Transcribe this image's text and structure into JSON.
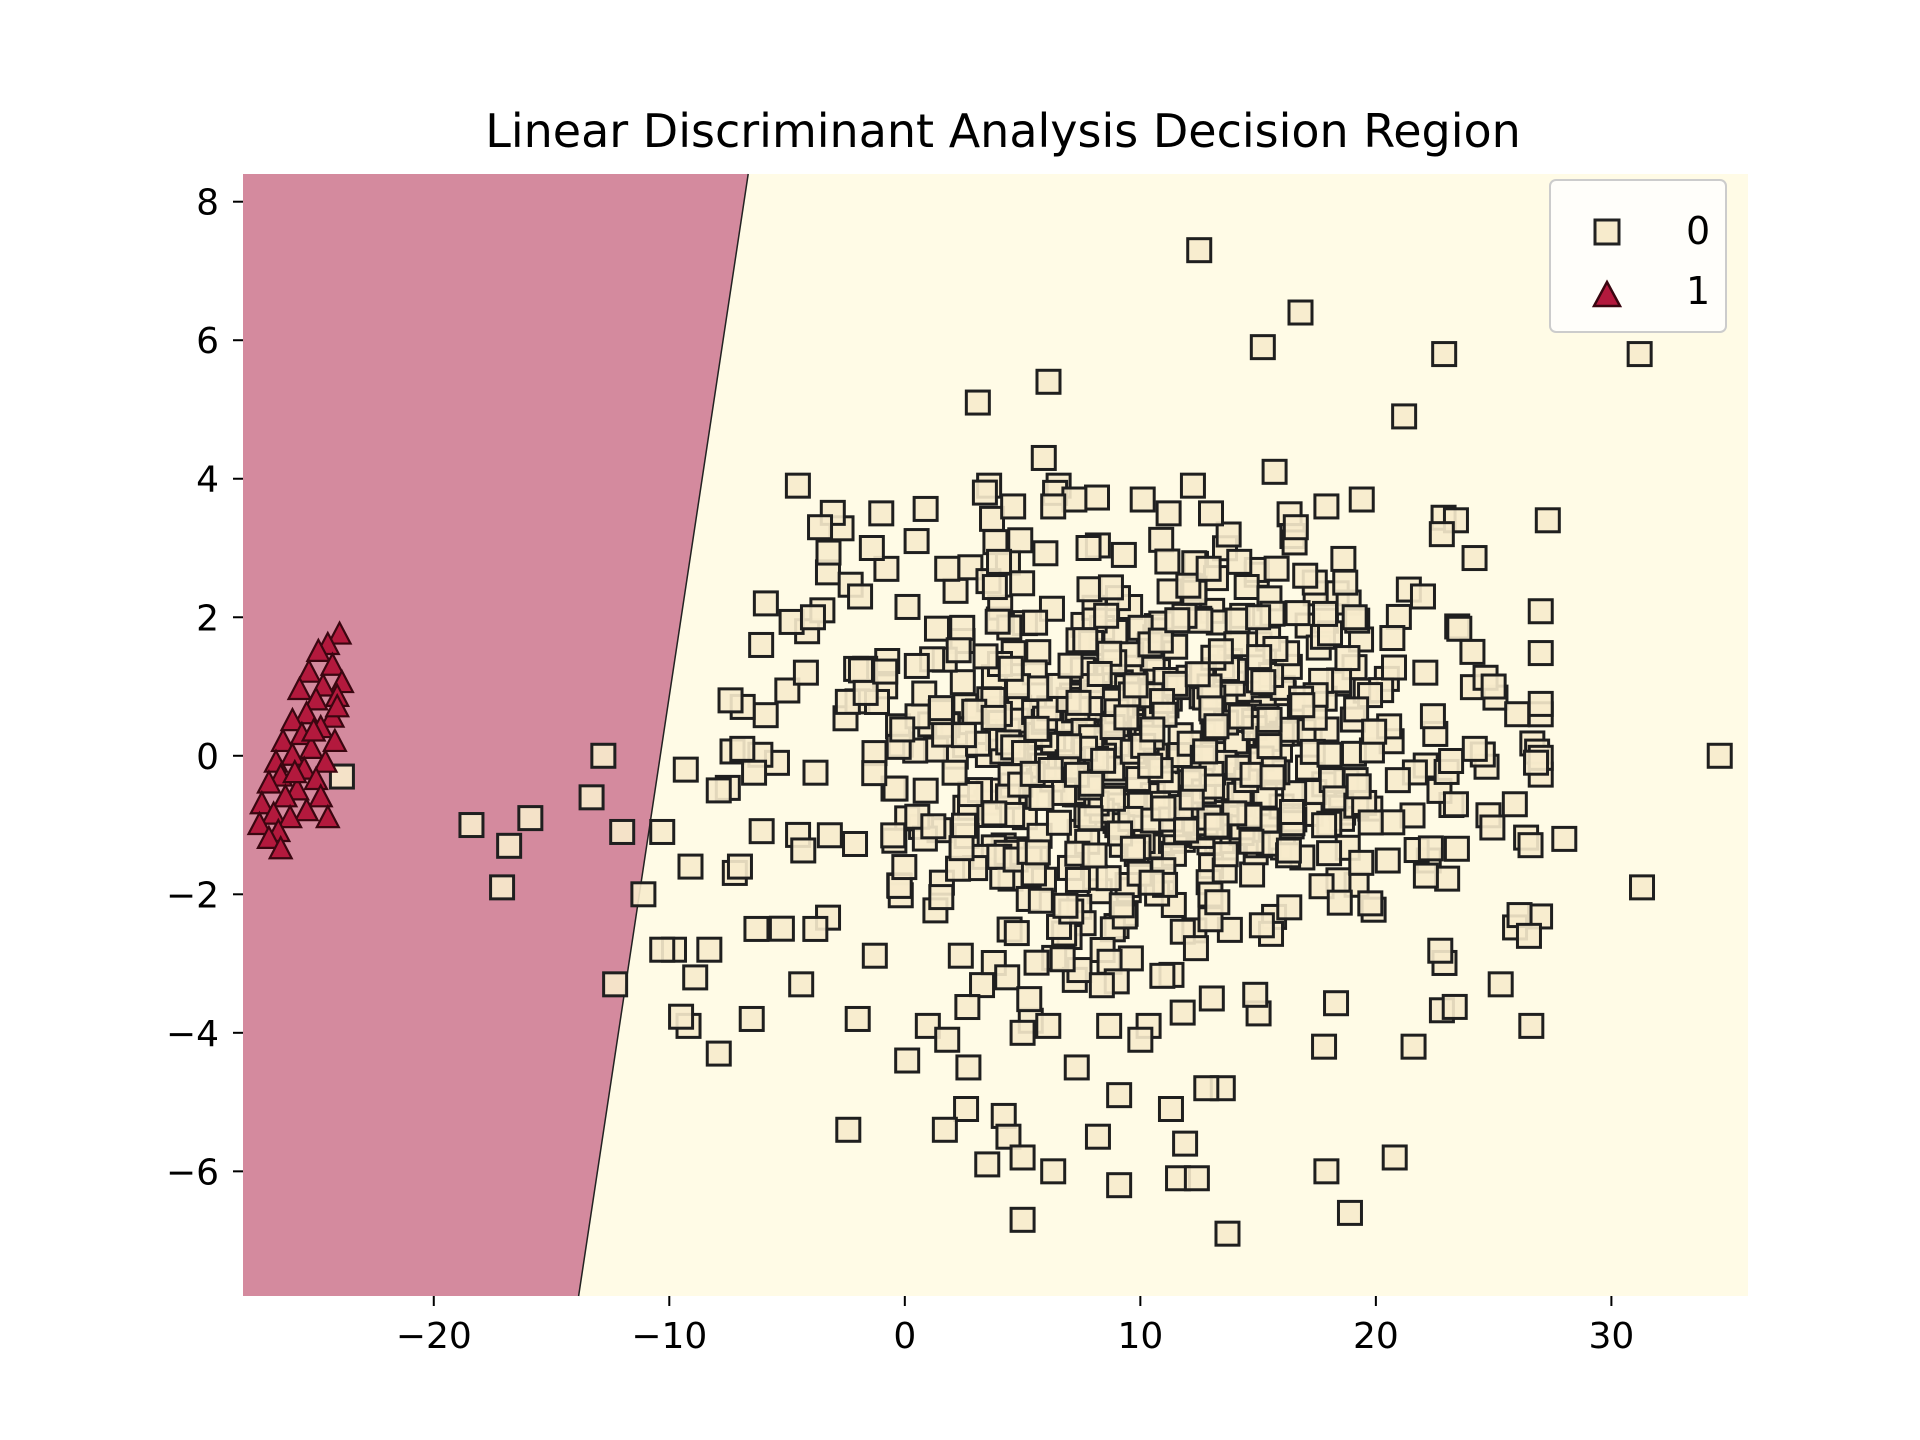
{
  "chart_data": {
    "type": "scatter",
    "title": "Linear Discriminant Analysis Decision Region",
    "xlabel": "",
    "ylabel": "",
    "xlim": [
      -28.1,
      35.8
    ],
    "ylim": [
      -7.8,
      8.4
    ],
    "xticks": [
      -20,
      -10,
      0,
      10,
      20,
      30
    ],
    "xtick_labels": [
      "−20",
      "−10",
      "0",
      "10",
      "20",
      "30"
    ],
    "yticks": [
      -6,
      -4,
      -2,
      0,
      2,
      4,
      6,
      8
    ],
    "ytick_labels": [
      "−6",
      "−4",
      "−2",
      "0",
      "2",
      "4",
      "6",
      "8"
    ],
    "decision_boundary": {
      "x_at_ymin": -13.85,
      "x_at_ymax": -6.65
    },
    "regions": [
      {
        "class": "1",
        "side": "left",
        "color": "#d48a9e"
      },
      {
        "class": "0",
        "side": "right",
        "color": "#fffbe6"
      }
    ],
    "legend": {
      "position": "top-right",
      "entries": [
        {
          "label": "0",
          "marker": "square",
          "color": "#f7ebcc"
        },
        {
          "label": "1",
          "marker": "triangle",
          "color": "#b3193d"
        }
      ]
    },
    "series": [
      {
        "name": "0",
        "marker": "square",
        "color": "#f7ebcc",
        "points": [
          [
            12.5,
            7.3
          ],
          [
            16.8,
            6.4
          ],
          [
            15.2,
            5.9
          ],
          [
            22.9,
            5.8
          ],
          [
            31.2,
            5.8
          ],
          [
            6.1,
            5.4
          ],
          [
            3.1,
            5.1
          ],
          [
            21.2,
            4.9
          ],
          [
            5.9,
            4.3
          ],
          [
            15.7,
            4.1
          ],
          [
            3.4,
            3.8
          ],
          [
            7.2,
            3.7
          ],
          [
            19.4,
            3.7
          ],
          [
            10.1,
            3.7
          ],
          [
            4.6,
            3.6
          ],
          [
            6.3,
            3.6
          ],
          [
            17.9,
            3.6
          ],
          [
            -1.0,
            3.5
          ],
          [
            11.2,
            3.5
          ],
          [
            13.0,
            3.5
          ],
          [
            23.4,
            3.4
          ],
          [
            27.3,
            3.4
          ],
          [
            -3.6,
            3.3
          ],
          [
            16.6,
            3.3
          ],
          [
            22.8,
            3.2
          ],
          [
            0.5,
            3.1
          ],
          [
            -1.4,
            3.0
          ],
          [
            7.8,
            3.0
          ],
          [
            9.3,
            2.9
          ],
          [
            14.2,
            2.8
          ],
          [
            4.0,
            2.8
          ],
          [
            1.8,
            2.7
          ],
          [
            12.9,
            2.7
          ],
          [
            17.0,
            2.6
          ],
          [
            18.7,
            2.5
          ],
          [
            -1.9,
            2.3
          ],
          [
            -5.9,
            2.2
          ],
          [
            21.4,
            2.4
          ],
          [
            22.0,
            2.3
          ],
          [
            -3.5,
            2.1
          ],
          [
            -3.9,
            2.0
          ],
          [
            15.0,
            2.0
          ],
          [
            19.1,
            2.0
          ],
          [
            20.7,
            1.7
          ],
          [
            24.1,
            1.5
          ],
          [
            -6.1,
            1.6
          ],
          [
            -4.2,
            1.2
          ],
          [
            22.1,
            1.2
          ],
          [
            25.0,
            1.0
          ],
          [
            -7.4,
            0.8
          ],
          [
            26.0,
            0.6
          ],
          [
            -6.9,
            0.1
          ],
          [
            24.2,
            0.1
          ],
          [
            26.8,
            -0.1
          ],
          [
            34.6,
            0.0
          ],
          [
            -9.3,
            -0.2
          ],
          [
            -7.9,
            -0.5
          ],
          [
            25.9,
            -0.7
          ],
          [
            23.4,
            -0.7
          ],
          [
            -10.3,
            -1.1
          ],
          [
            -7.0,
            -1.6
          ],
          [
            -9.1,
            -1.6
          ],
          [
            28.0,
            -1.2
          ],
          [
            31.3,
            -1.9
          ],
          [
            26.1,
            -2.3
          ],
          [
            26.5,
            -2.6
          ],
          [
            -6.3,
            -2.5
          ],
          [
            -3.8,
            -2.5
          ],
          [
            -9.8,
            -2.8
          ],
          [
            -10.3,
            -2.8
          ],
          [
            -8.3,
            -2.8
          ],
          [
            -8.9,
            -3.2
          ],
          [
            25.3,
            -3.3
          ],
          [
            -4.4,
            -3.3
          ],
          [
            -6.5,
            -3.8
          ],
          [
            -2.0,
            -3.8
          ],
          [
            26.6,
            -3.9
          ],
          [
            -7.9,
            -4.3
          ],
          [
            17.8,
            -4.2
          ],
          [
            21.6,
            -4.2
          ],
          [
            0.1,
            -4.4
          ],
          [
            1.8,
            -4.1
          ],
          [
            2.7,
            -4.5
          ],
          [
            5.0,
            -4.0
          ],
          [
            7.3,
            -4.5
          ],
          [
            10.0,
            -4.1
          ],
          [
            13.5,
            -4.8
          ],
          [
            12.8,
            -4.8
          ],
          [
            9.1,
            -4.9
          ],
          [
            2.6,
            -5.1
          ],
          [
            4.2,
            -5.2
          ],
          [
            11.3,
            -5.1
          ],
          [
            -2.4,
            -5.4
          ],
          [
            1.7,
            -5.4
          ],
          [
            4.4,
            -5.5
          ],
          [
            8.2,
            -5.5
          ],
          [
            11.9,
            -5.6
          ],
          [
            20.8,
            -5.8
          ],
          [
            3.5,
            -5.9
          ],
          [
            5.0,
            -5.8
          ],
          [
            6.3,
            -6.0
          ],
          [
            17.9,
            -6.0
          ],
          [
            11.6,
            -6.1
          ],
          [
            12.4,
            -6.1
          ],
          [
            9.1,
            -6.2
          ],
          [
            18.9,
            -6.6
          ],
          [
            5.0,
            -6.7
          ],
          [
            13.7,
            -6.9
          ]
        ],
        "cluster_center": [
          10.3,
          0.0
        ],
        "cluster_spread": [
          7.2,
          1.55
        ],
        "cluster_count": 720
      },
      {
        "name": "0",
        "marker": "square",
        "color": "#f7ebcc",
        "points": [
          [
            -12.8,
            0.0
          ],
          [
            -13.3,
            -0.6
          ],
          [
            -18.4,
            -1.0
          ],
          [
            -15.9,
            -0.9
          ],
          [
            -16.8,
            -1.3
          ],
          [
            -17.1,
            -1.9
          ],
          [
            -12.0,
            -1.1
          ],
          [
            -11.1,
            -2.0
          ],
          [
            -12.3,
            -3.3
          ],
          [
            -23.9,
            -0.3
          ]
        ]
      },
      {
        "name": "1",
        "marker": "triangle",
        "color": "#b3193d",
        "points": [
          [
            -24.0,
            1.75
          ],
          [
            -24.5,
            1.6
          ],
          [
            -24.9,
            1.5
          ],
          [
            -24.3,
            1.3
          ],
          [
            -25.3,
            1.2
          ],
          [
            -23.9,
            1.05
          ],
          [
            -24.7,
            1.0
          ],
          [
            -25.7,
            0.95
          ],
          [
            -24.1,
            0.85
          ],
          [
            -25.0,
            0.8
          ],
          [
            -25.4,
            0.6
          ],
          [
            -24.3,
            0.55
          ],
          [
            -26.0,
            0.5
          ],
          [
            -24.8,
            0.4
          ],
          [
            -25.6,
            0.3
          ],
          [
            -26.4,
            0.2
          ],
          [
            -24.2,
            0.2
          ],
          [
            -25.2,
            0.1
          ],
          [
            -26.0,
            0.0
          ],
          [
            -26.7,
            -0.1
          ],
          [
            -24.6,
            -0.1
          ],
          [
            -25.5,
            -0.2
          ],
          [
            -26.5,
            -0.3
          ],
          [
            -25.0,
            -0.35
          ],
          [
            -27.0,
            -0.4
          ],
          [
            -25.8,
            -0.5
          ],
          [
            -26.3,
            -0.6
          ],
          [
            -24.8,
            -0.6
          ],
          [
            -27.3,
            -0.7
          ],
          [
            -25.4,
            -0.8
          ],
          [
            -26.8,
            -0.85
          ],
          [
            -26.1,
            -0.9
          ],
          [
            -27.4,
            -1.0
          ],
          [
            -26.6,
            -1.1
          ],
          [
            -27.0,
            -1.2
          ],
          [
            -26.5,
            -1.35
          ],
          [
            -24.5,
            -0.9
          ],
          [
            -25.9,
            -0.25
          ],
          [
            -24.1,
            0.7
          ],
          [
            -25.1,
            0.35
          ]
        ]
      }
    ]
  }
}
